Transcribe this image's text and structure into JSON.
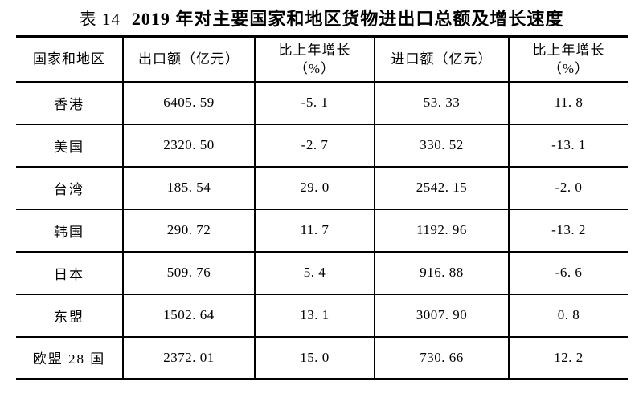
{
  "page": {
    "background": "#ffffff",
    "text_color": "#000000",
    "border_color": "#000000"
  },
  "caption": {
    "table_label": "表 14",
    "title": "2019 年对主要国家和地区货物进出口总额及增长速度"
  },
  "table": {
    "headers": [
      {
        "line1": "国家和地区",
        "line2": ""
      },
      {
        "line1": "出口额（亿元）",
        "line2": ""
      },
      {
        "line1": "比上年增长",
        "line2": "（%）"
      },
      {
        "line1": "进口额（亿元）",
        "line2": ""
      },
      {
        "line1": "比上年增长",
        "line2": "（%）"
      }
    ],
    "rows": [
      {
        "region": "香港",
        "export": "6405. 59",
        "export_growth": "-5. 1",
        "import": "53. 33",
        "import_growth": "11. 8"
      },
      {
        "region": "美国",
        "export": "2320. 50",
        "export_growth": "-2. 7",
        "import": "330. 52",
        "import_growth": "-13. 1"
      },
      {
        "region": "台湾",
        "export": "185. 54",
        "export_growth": "29. 0",
        "import": "2542. 15",
        "import_growth": "-2. 0"
      },
      {
        "region": "韩国",
        "export": "290. 72",
        "export_growth": "11. 7",
        "import": "1192. 96",
        "import_growth": "-13. 2"
      },
      {
        "region": "日本",
        "export": "509. 76",
        "export_growth": "5. 4",
        "import": "916. 88",
        "import_growth": "-6. 6"
      },
      {
        "region": "东盟",
        "export": "1502. 64",
        "export_growth": "13. 1",
        "import": "3007. 90",
        "import_growth": "0. 8"
      },
      {
        "region": "欧盟 28 国",
        "export": "2372. 01",
        "export_growth": "15. 0",
        "import": "730. 66",
        "import_growth": "12. 2"
      }
    ]
  }
}
